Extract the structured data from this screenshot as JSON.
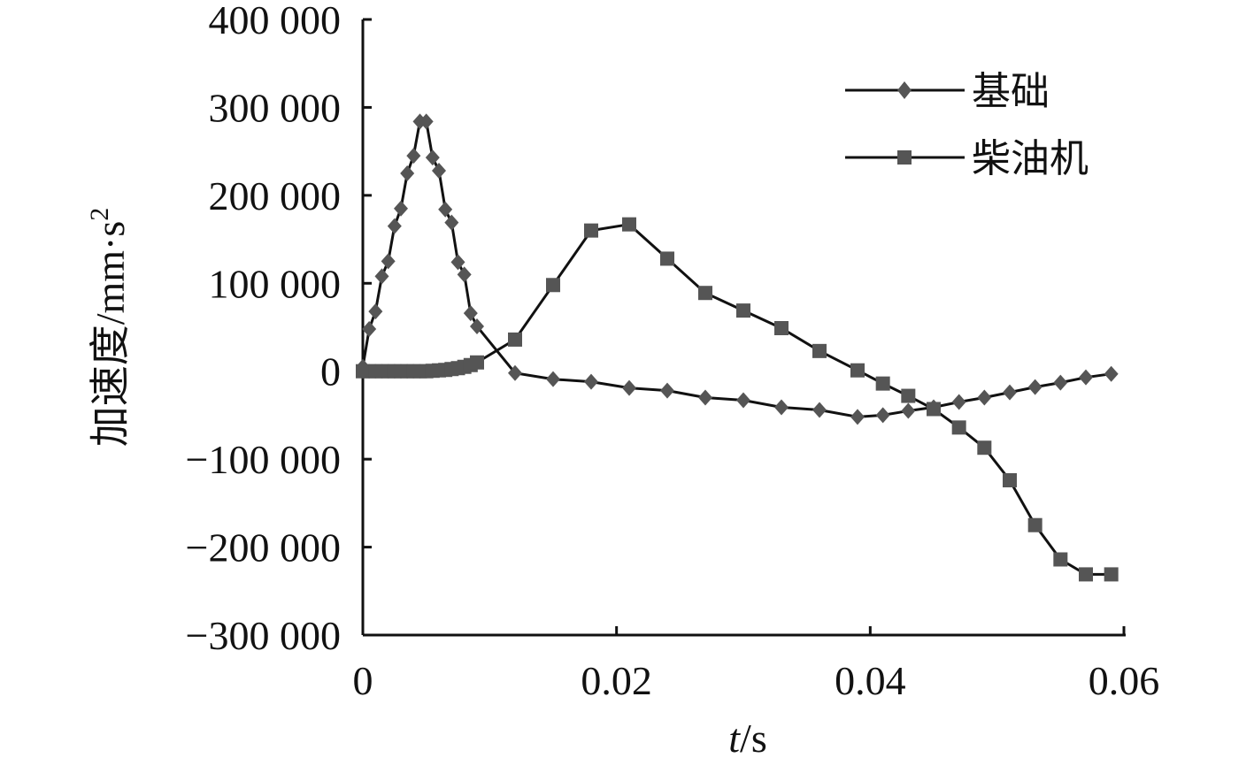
{
  "chart_data": {
    "type": "line",
    "xlabel_italic": "t",
    "xlabel_rest": "/s",
    "ylabel_main": "加速度/mm·s",
    "ylabel_sup": "2",
    "x_ticks": [
      "0",
      "0.02",
      "0.04",
      "0.06"
    ],
    "y_ticks": [
      "400 000",
      "300 000",
      "200 000",
      "100 000",
      "0",
      "−100 000",
      "−200 000",
      "−300 000"
    ],
    "xlim": [
      0,
      0.06
    ],
    "ylim": [
      -300000,
      400000
    ],
    "grid": false,
    "legend_position": "top-right",
    "series": [
      {
        "name": "基础",
        "marker": "diamond",
        "color": "#555555",
        "x": [
          0,
          0.0005,
          0.001,
          0.0015,
          0.002,
          0.0025,
          0.003,
          0.0035,
          0.004,
          0.0045,
          0.005,
          0.0055,
          0.006,
          0.0065,
          0.007,
          0.0075,
          0.008,
          0.0085,
          0.009,
          0.012,
          0.015,
          0.018,
          0.021,
          0.024,
          0.027,
          0.03,
          0.033,
          0.036,
          0.039,
          0.041,
          0.043,
          0.045,
          0.047,
          0.049,
          0.051,
          0.053,
          0.055,
          0.057,
          0.059
        ],
        "y": [
          5000,
          48000,
          68000,
          108000,
          125000,
          165000,
          185000,
          225000,
          245000,
          284000,
          284000,
          243000,
          228000,
          184000,
          169000,
          124000,
          110000,
          66000,
          51000,
          -2000,
          -9000,
          -12000,
          -19000,
          -22000,
          -30000,
          -33000,
          -41000,
          -44000,
          -52000,
          -50000,
          -45000,
          -41000,
          -35000,
          -30000,
          -24000,
          -18000,
          -13000,
          -7000,
          -3000
        ]
      },
      {
        "name": "柴油机",
        "marker": "square",
        "color": "#555555",
        "x": [
          0,
          0.0005,
          0.001,
          0.0015,
          0.002,
          0.0025,
          0.003,
          0.0035,
          0.004,
          0.0045,
          0.005,
          0.0055,
          0.006,
          0.0065,
          0.007,
          0.0075,
          0.008,
          0.0085,
          0.009,
          0.012,
          0.015,
          0.018,
          0.021,
          0.024,
          0.027,
          0.03,
          0.033,
          0.036,
          0.039,
          0.041,
          0.043,
          0.045,
          0.047,
          0.049,
          0.051,
          0.053,
          0.055,
          0.057,
          0.059
        ],
        "y": [
          0,
          0,
          0,
          0,
          0,
          0,
          0,
          0,
          0,
          0,
          0,
          500,
          1000,
          1500,
          2500,
          3500,
          5000,
          7000,
          10000,
          36000,
          98000,
          160000,
          167000,
          128000,
          89000,
          69000,
          49000,
          23000,
          1000,
          -14000,
          -28000,
          -43000,
          -64000,
          -87000,
          -124000,
          -175000,
          -214000,
          -231000,
          -231000
        ]
      }
    ]
  }
}
